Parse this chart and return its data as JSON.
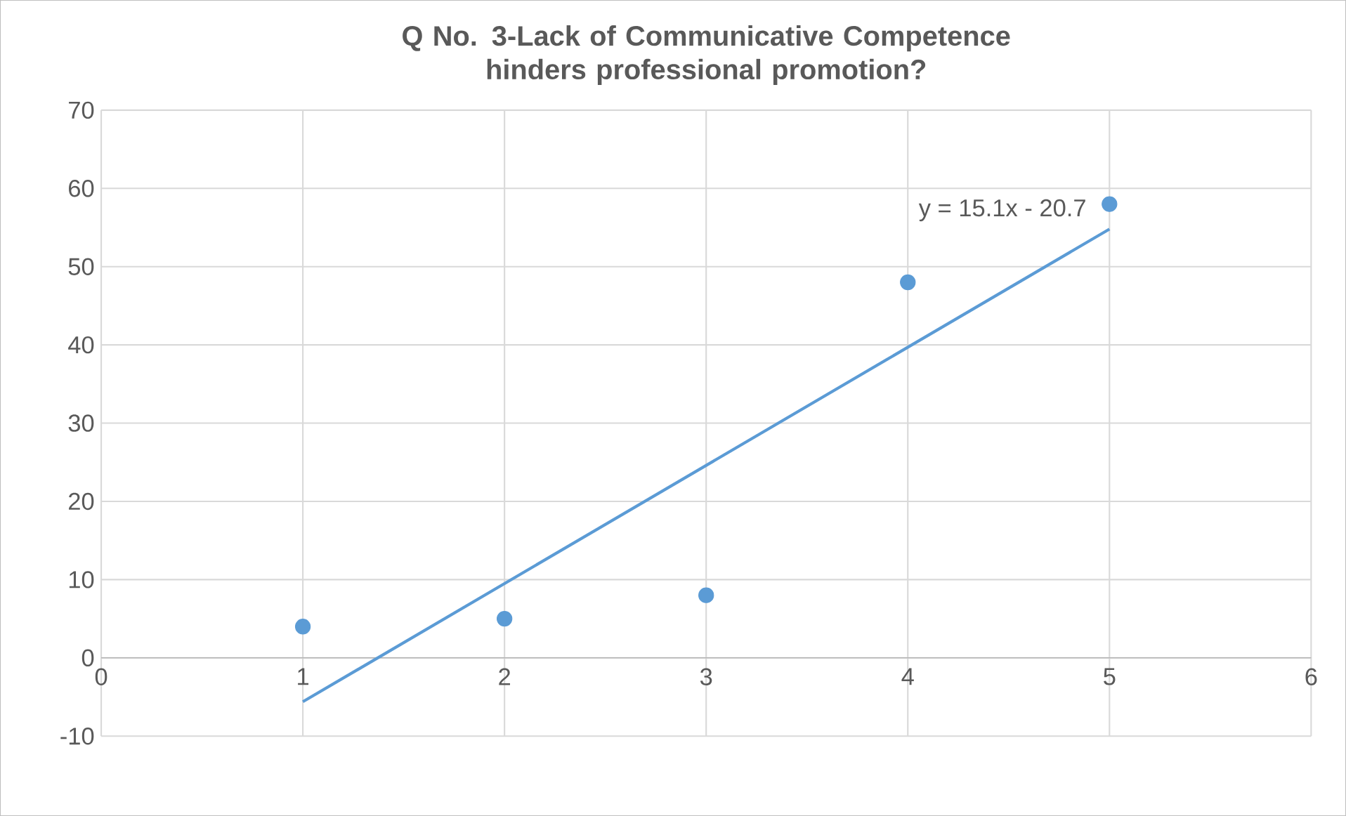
{
  "chart_data": {
    "type": "scatter",
    "title": "Q No. 3-Lack of Communicative Competence hinders professional promotion?",
    "x": [
      1,
      2,
      3,
      4,
      5
    ],
    "series": [
      {
        "color": "#5b9bd5",
        "values": [
          4,
          5,
          8,
          48,
          58
        ],
        "marker": "circle"
      },
      {
        "type": "line",
        "color": "#5b9bd5",
        "x": [
          1,
          5
        ],
        "values": [
          -5.6,
          54.8
        ],
        "marker": "none"
      }
    ],
    "annotations": [
      "y = 15.1x - 20.7"
    ],
    "xlim": [
      0,
      6
    ],
    "xticks": [
      0,
      1,
      2,
      3,
      4,
      5,
      6
    ],
    "ylim": [
      -10,
      70
    ],
    "yticks": [
      -10,
      0,
      10,
      20,
      30,
      40,
      50,
      60,
      70
    ],
    "grid": true
  }
}
